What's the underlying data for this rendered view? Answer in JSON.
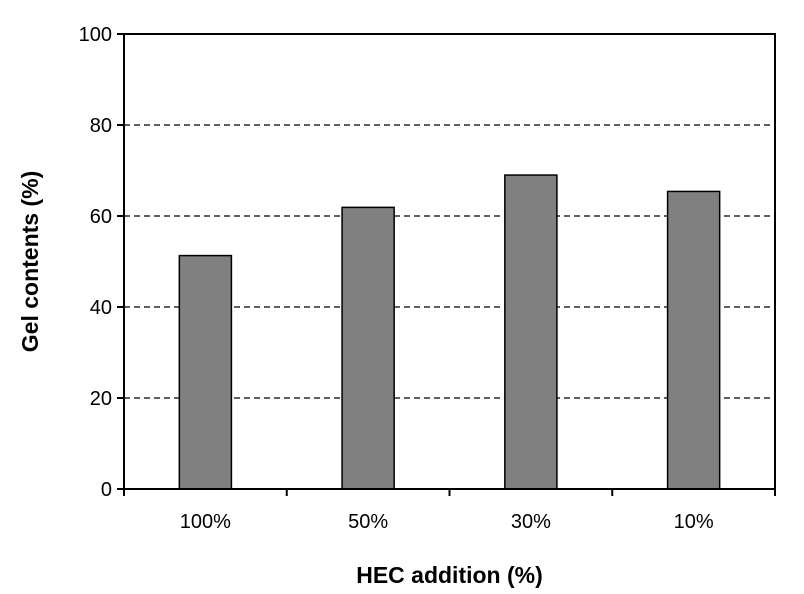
{
  "chart_data": {
    "type": "bar",
    "title": "",
    "xlabel": "HEC addition (%)",
    "ylabel": "Gel contents (%)",
    "categories": [
      "100%",
      "50%",
      "30%",
      "10%"
    ],
    "values": [
      51.3,
      61.9,
      69.0,
      65.4
    ],
    "ylim": [
      0,
      100
    ],
    "yticks": [
      "0",
      "20",
      "40",
      "60",
      "80",
      "100"
    ],
    "grid": "horizontal dashed",
    "bar_color": "#808080",
    "legend": "none"
  }
}
